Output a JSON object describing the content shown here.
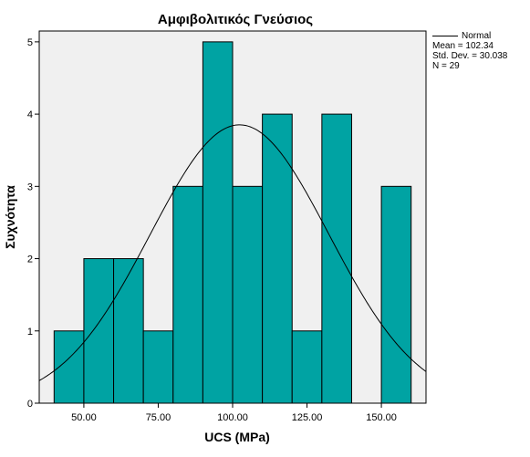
{
  "chart_data": {
    "type": "histogram",
    "title": "Αμφιβολιτικός Γνεύσιος",
    "xlabel": "UCS (MPa)",
    "ylabel": "Συχνότητα",
    "xlim": [
      35,
      165
    ],
    "ylim": [
      0,
      5.15
    ],
    "x_ticks": [
      50,
      75,
      100,
      125,
      150
    ],
    "x_tick_labels": [
      "50.00",
      "75.00",
      "100.00",
      "125.00",
      "150.00"
    ],
    "y_ticks": [
      0,
      1,
      2,
      3,
      4,
      5
    ],
    "y_tick_labels": [
      "0",
      "1",
      "2",
      "3",
      "4",
      "5"
    ],
    "bins": [
      {
        "x0": 40,
        "x1": 50,
        "count": 1
      },
      {
        "x0": 50,
        "x1": 60,
        "count": 2
      },
      {
        "x0": 60,
        "x1": 70,
        "count": 2
      },
      {
        "x0": 70,
        "x1": 80,
        "count": 1
      },
      {
        "x0": 80,
        "x1": 90,
        "count": 3
      },
      {
        "x0": 90,
        "x1": 100,
        "count": 5
      },
      {
        "x0": 100,
        "x1": 110,
        "count": 3
      },
      {
        "x0": 110,
        "x1": 120,
        "count": 4
      },
      {
        "x0": 120,
        "x1": 130,
        "count": 1
      },
      {
        "x0": 130,
        "x1": 140,
        "count": 4
      },
      {
        "x0": 140,
        "x1": 150,
        "count": 0
      },
      {
        "x0": 150,
        "x1": 160,
        "count": 3
      }
    ],
    "normal_curve": {
      "mean": 102.34,
      "std": 30.038,
      "n": 29,
      "bin_width": 10
    },
    "legend": {
      "label": "Normal",
      "stats": [
        "Mean = 102.34",
        "Std. Dev. = 30.038",
        "N = 29"
      ]
    },
    "colors": {
      "bar_fill": "#00a3a3",
      "plot_bg": "#f0f0f0",
      "curve": "#000000"
    }
  }
}
